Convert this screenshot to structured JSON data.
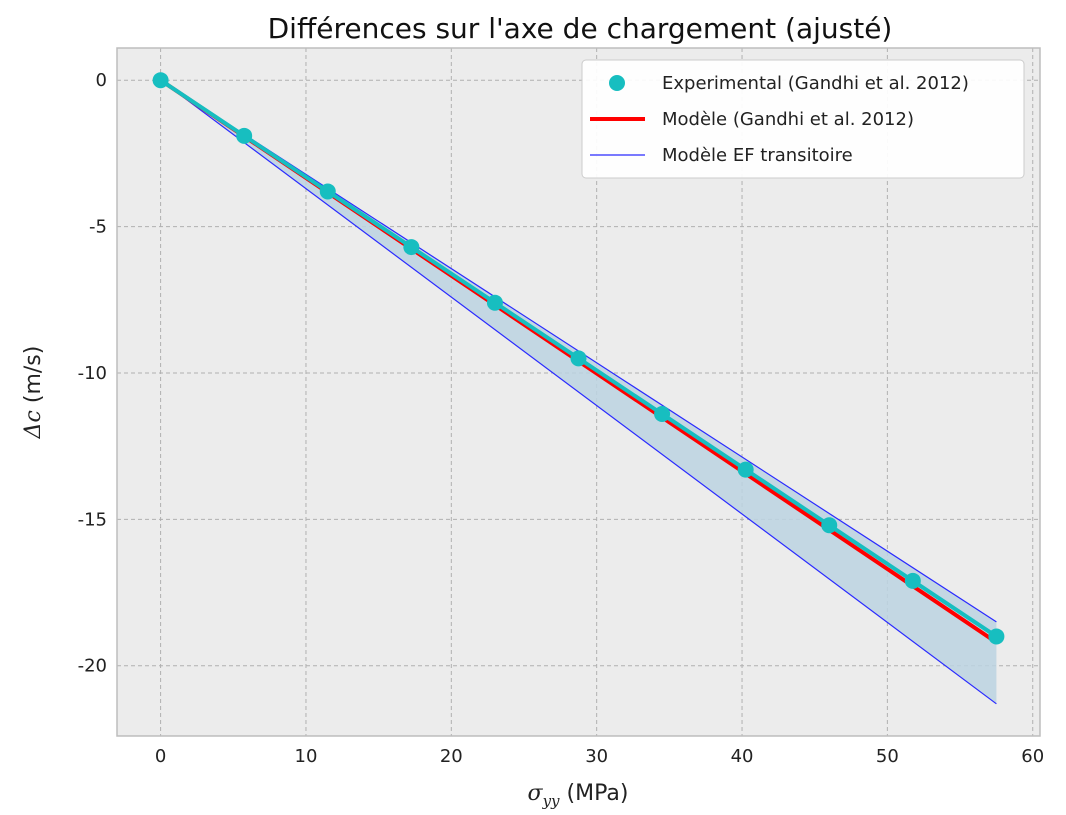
{
  "chart_data": {
    "type": "line",
    "title": "Différences sur l'axe de chargement (ajusté)",
    "xlabel_symbol": "σ",
    "xlabel_subscript": "yy",
    "xlabel_unit": " (MPa)",
    "ylabel_symbol": "Δc",
    "ylabel_unit": " (m/s)",
    "xlim": [
      -3,
      60.5
    ],
    "ylim": [
      -22.4,
      1.1
    ],
    "xticks": [
      0,
      10,
      20,
      30,
      40,
      50,
      60
    ],
    "yticks": [
      0,
      -5,
      -10,
      -15,
      -20
    ],
    "ytick_labels": [
      "0",
      "-5",
      "-10",
      "-15",
      "-20"
    ],
    "grid": true,
    "legend_position": "top-right",
    "colors": {
      "experimental": "#17bec0",
      "model": "#ff0000",
      "fe_model": "#2a2aff",
      "band_fill": "#bcd3e2",
      "axes_bg": "#ececec",
      "grid": "#b0b0b0"
    },
    "series": [
      {
        "name": "Experimental (Gandhi et al. 2012)",
        "kind": "scatter-line",
        "x": [
          0,
          5.75,
          11.5,
          17.25,
          23,
          28.75,
          34.5,
          40.25,
          46,
          51.75,
          57.5
        ],
        "y": [
          0,
          -1.9,
          -3.8,
          -5.7,
          -7.6,
          -9.5,
          -11.4,
          -13.3,
          -15.2,
          -17.1,
          -19.0
        ]
      },
      {
        "name": "Modèle (Gandhi et al. 2012)",
        "kind": "line",
        "x": [
          0,
          57.5
        ],
        "y": [
          0,
          -19.2
        ]
      },
      {
        "name": "Modèle EF transitoire",
        "kind": "band",
        "x": [
          0,
          57.5
        ],
        "upper": [
          0,
          -18.5
        ],
        "lower": [
          0,
          -21.3
        ]
      }
    ]
  }
}
